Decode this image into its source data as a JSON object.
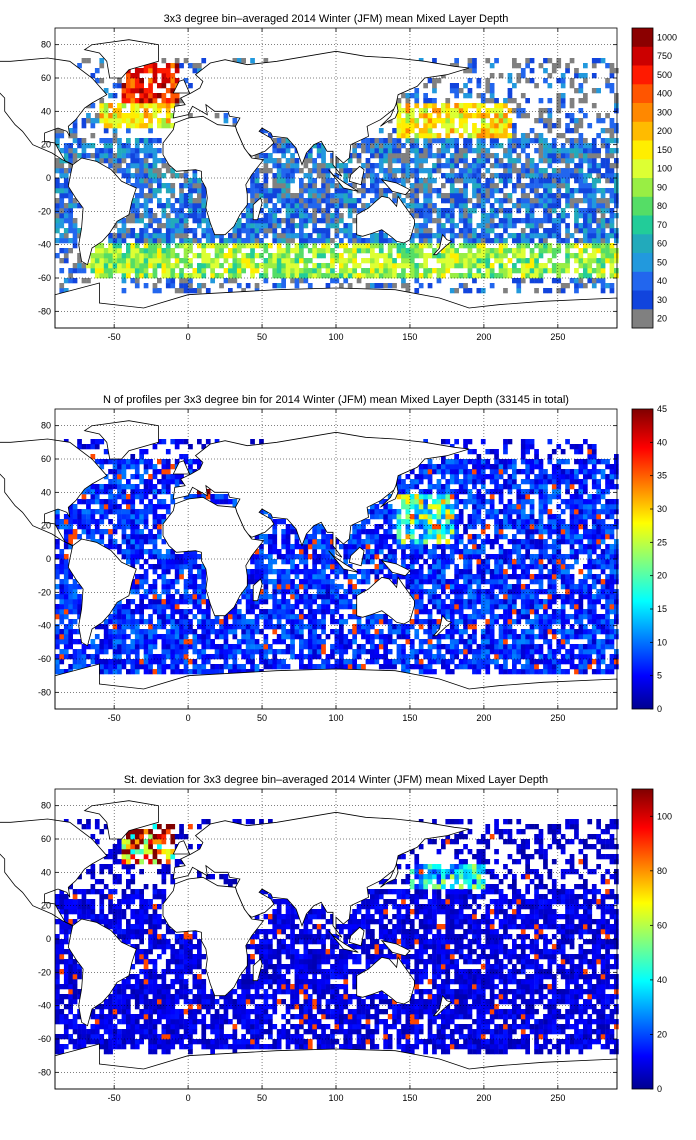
{
  "colors": {
    "land": "#ffffff",
    "coast": "#000000",
    "nodata_gray": "#808080"
  },
  "chart_data": [
    {
      "type": "heatmap",
      "title": "3x3 degree bin–averaged 2014 Winter (JFM) mean Mixed Layer Depth",
      "xlabel": "",
      "ylabel": "",
      "xlim": [
        -90,
        290
      ],
      "ylim": [
        -90,
        90
      ],
      "xticks": [
        -50,
        0,
        50,
        100,
        150,
        200,
        250
      ],
      "yticks": [
        80,
        60,
        40,
        20,
        0,
        -20,
        -40,
        -60,
        -80
      ],
      "grid": true,
      "colorbar": {
        "scale": "discrete",
        "labels": [
          "1000",
          "750",
          "500",
          "400",
          "300",
          "200",
          "150",
          "100",
          "90",
          "80",
          "70",
          "60",
          "50",
          "40",
          "30",
          "20"
        ],
        "colors": [
          "#8b0000",
          "#cc0000",
          "#ff1a00",
          "#ff5500",
          "#ff8800",
          "#ffbb00",
          "#ffee00",
          "#ddff33",
          "#99ee44",
          "#55dd66",
          "#22cc99",
          "#22aabb",
          "#2299dd",
          "#2266ee",
          "#1144dd",
          "#808080"
        ]
      },
      "regions": [
        {
          "lon": [
            -45,
            -5
          ],
          "lat": [
            45,
            70
          ],
          "mean": 500
        },
        {
          "lon": [
            -60,
            -10
          ],
          "lat": [
            30,
            45
          ],
          "mean": 150
        },
        {
          "lon": [
            140,
            220
          ],
          "lat": [
            25,
            45
          ],
          "mean": 150
        },
        {
          "lon": [
            -70,
            290
          ],
          "lat": [
            -60,
            -40
          ],
          "mean": 90
        },
        {
          "lon": [
            -90,
            290
          ],
          "lat": [
            -40,
            25
          ],
          "mean": 35
        }
      ]
    },
    {
      "type": "heatmap",
      "title": "N of profiles per 3x3 degree bin for 2014 Winter (JFM) mean Mixed Layer Depth  (33145 in total)",
      "total_profiles": 33145,
      "xlabel": "",
      "ylabel": "",
      "xlim": [
        -90,
        290
      ],
      "ylim": [
        -90,
        90
      ],
      "xticks": [
        -50,
        0,
        50,
        100,
        150,
        200,
        250
      ],
      "yticks": [
        80,
        60,
        40,
        20,
        0,
        -20,
        -40,
        -60,
        -80
      ],
      "grid": true,
      "colorbar": {
        "scale": "continuous",
        "range": [
          0,
          45
        ],
        "ticks": [
          0,
          5,
          10,
          15,
          20,
          25,
          30,
          35,
          40,
          45
        ]
      },
      "regions": [
        {
          "lon": [
            0,
            20
          ],
          "lat": [
            38,
            45
          ],
          "mean": 35
        },
        {
          "lon": [
            140,
            180
          ],
          "lat": [
            10,
            40
          ],
          "mean": 18
        },
        {
          "lon": [
            -90,
            290
          ],
          "lat": [
            -70,
            60
          ],
          "mean": 6
        }
      ]
    },
    {
      "type": "heatmap",
      "title": "St. deviation for 3x3 degree bin–averaged 2014 Winter (JFM) mean Mixed Layer Depth",
      "xlabel": "",
      "ylabel": "",
      "xlim": [
        -90,
        290
      ],
      "ylim": [
        -90,
        90
      ],
      "xticks": [
        -50,
        0,
        50,
        100,
        150,
        200,
        250
      ],
      "yticks": [
        80,
        60,
        40,
        20,
        0,
        -20,
        -40,
        -60,
        -80
      ],
      "grid": true,
      "colorbar": {
        "scale": "continuous",
        "range": [
          0,
          110
        ],
        "ticks": [
          0,
          20,
          40,
          60,
          80,
          100
        ]
      },
      "regions": [
        {
          "lon": [
            -45,
            -10
          ],
          "lat": [
            45,
            70
          ],
          "mean": 90
        },
        {
          "lon": [
            150,
            200
          ],
          "lat": [
            30,
            45
          ],
          "mean": 35
        },
        {
          "lon": [
            -90,
            290
          ],
          "lat": [
            -65,
            30
          ],
          "mean": 8
        }
      ]
    }
  ]
}
